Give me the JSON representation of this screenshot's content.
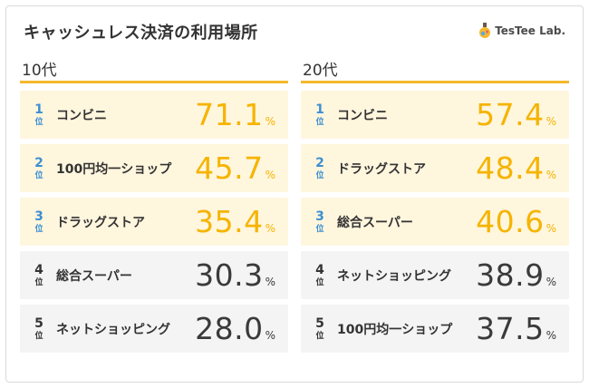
{
  "header": {
    "title": "キャッシュレス決済の利用場所",
    "logo_text": "TesTee Lab."
  },
  "colors": {
    "accent": "#f5b92d",
    "highlight_bg": "#fff6de",
    "other_bg": "#f4f4f4",
    "rank_blue": "#3d8fd1",
    "value_yellow": "#f5b400"
  },
  "chart_data": [
    {
      "type": "table",
      "title": "10代",
      "rank_unit": "位",
      "unit": "%",
      "columns": [
        "rank",
        "label",
        "value"
      ],
      "rows": [
        {
          "rank": "1",
          "label": "コンビニ",
          "value": "71.1"
        },
        {
          "rank": "2",
          "label": "100円均一ショップ",
          "value": "45.7"
        },
        {
          "rank": "3",
          "label": "ドラッグストア",
          "value": "35.4"
        },
        {
          "rank": "4",
          "label": "総合スーパー",
          "value": "30.3"
        },
        {
          "rank": "5",
          "label": "ネットショッピング",
          "value": "28.0"
        }
      ]
    },
    {
      "type": "table",
      "title": "20代",
      "rank_unit": "位",
      "unit": "%",
      "columns": [
        "rank",
        "label",
        "value"
      ],
      "rows": [
        {
          "rank": "1",
          "label": "コンビニ",
          "value": "57.4"
        },
        {
          "rank": "2",
          "label": "ドラッグストア",
          "value": "48.4"
        },
        {
          "rank": "3",
          "label": "総合スーパー",
          "value": "40.6"
        },
        {
          "rank": "4",
          "label": "ネットショッピング",
          "value": "38.9"
        },
        {
          "rank": "5",
          "label": "100円均一ショップ",
          "value": "37.5"
        }
      ]
    }
  ]
}
